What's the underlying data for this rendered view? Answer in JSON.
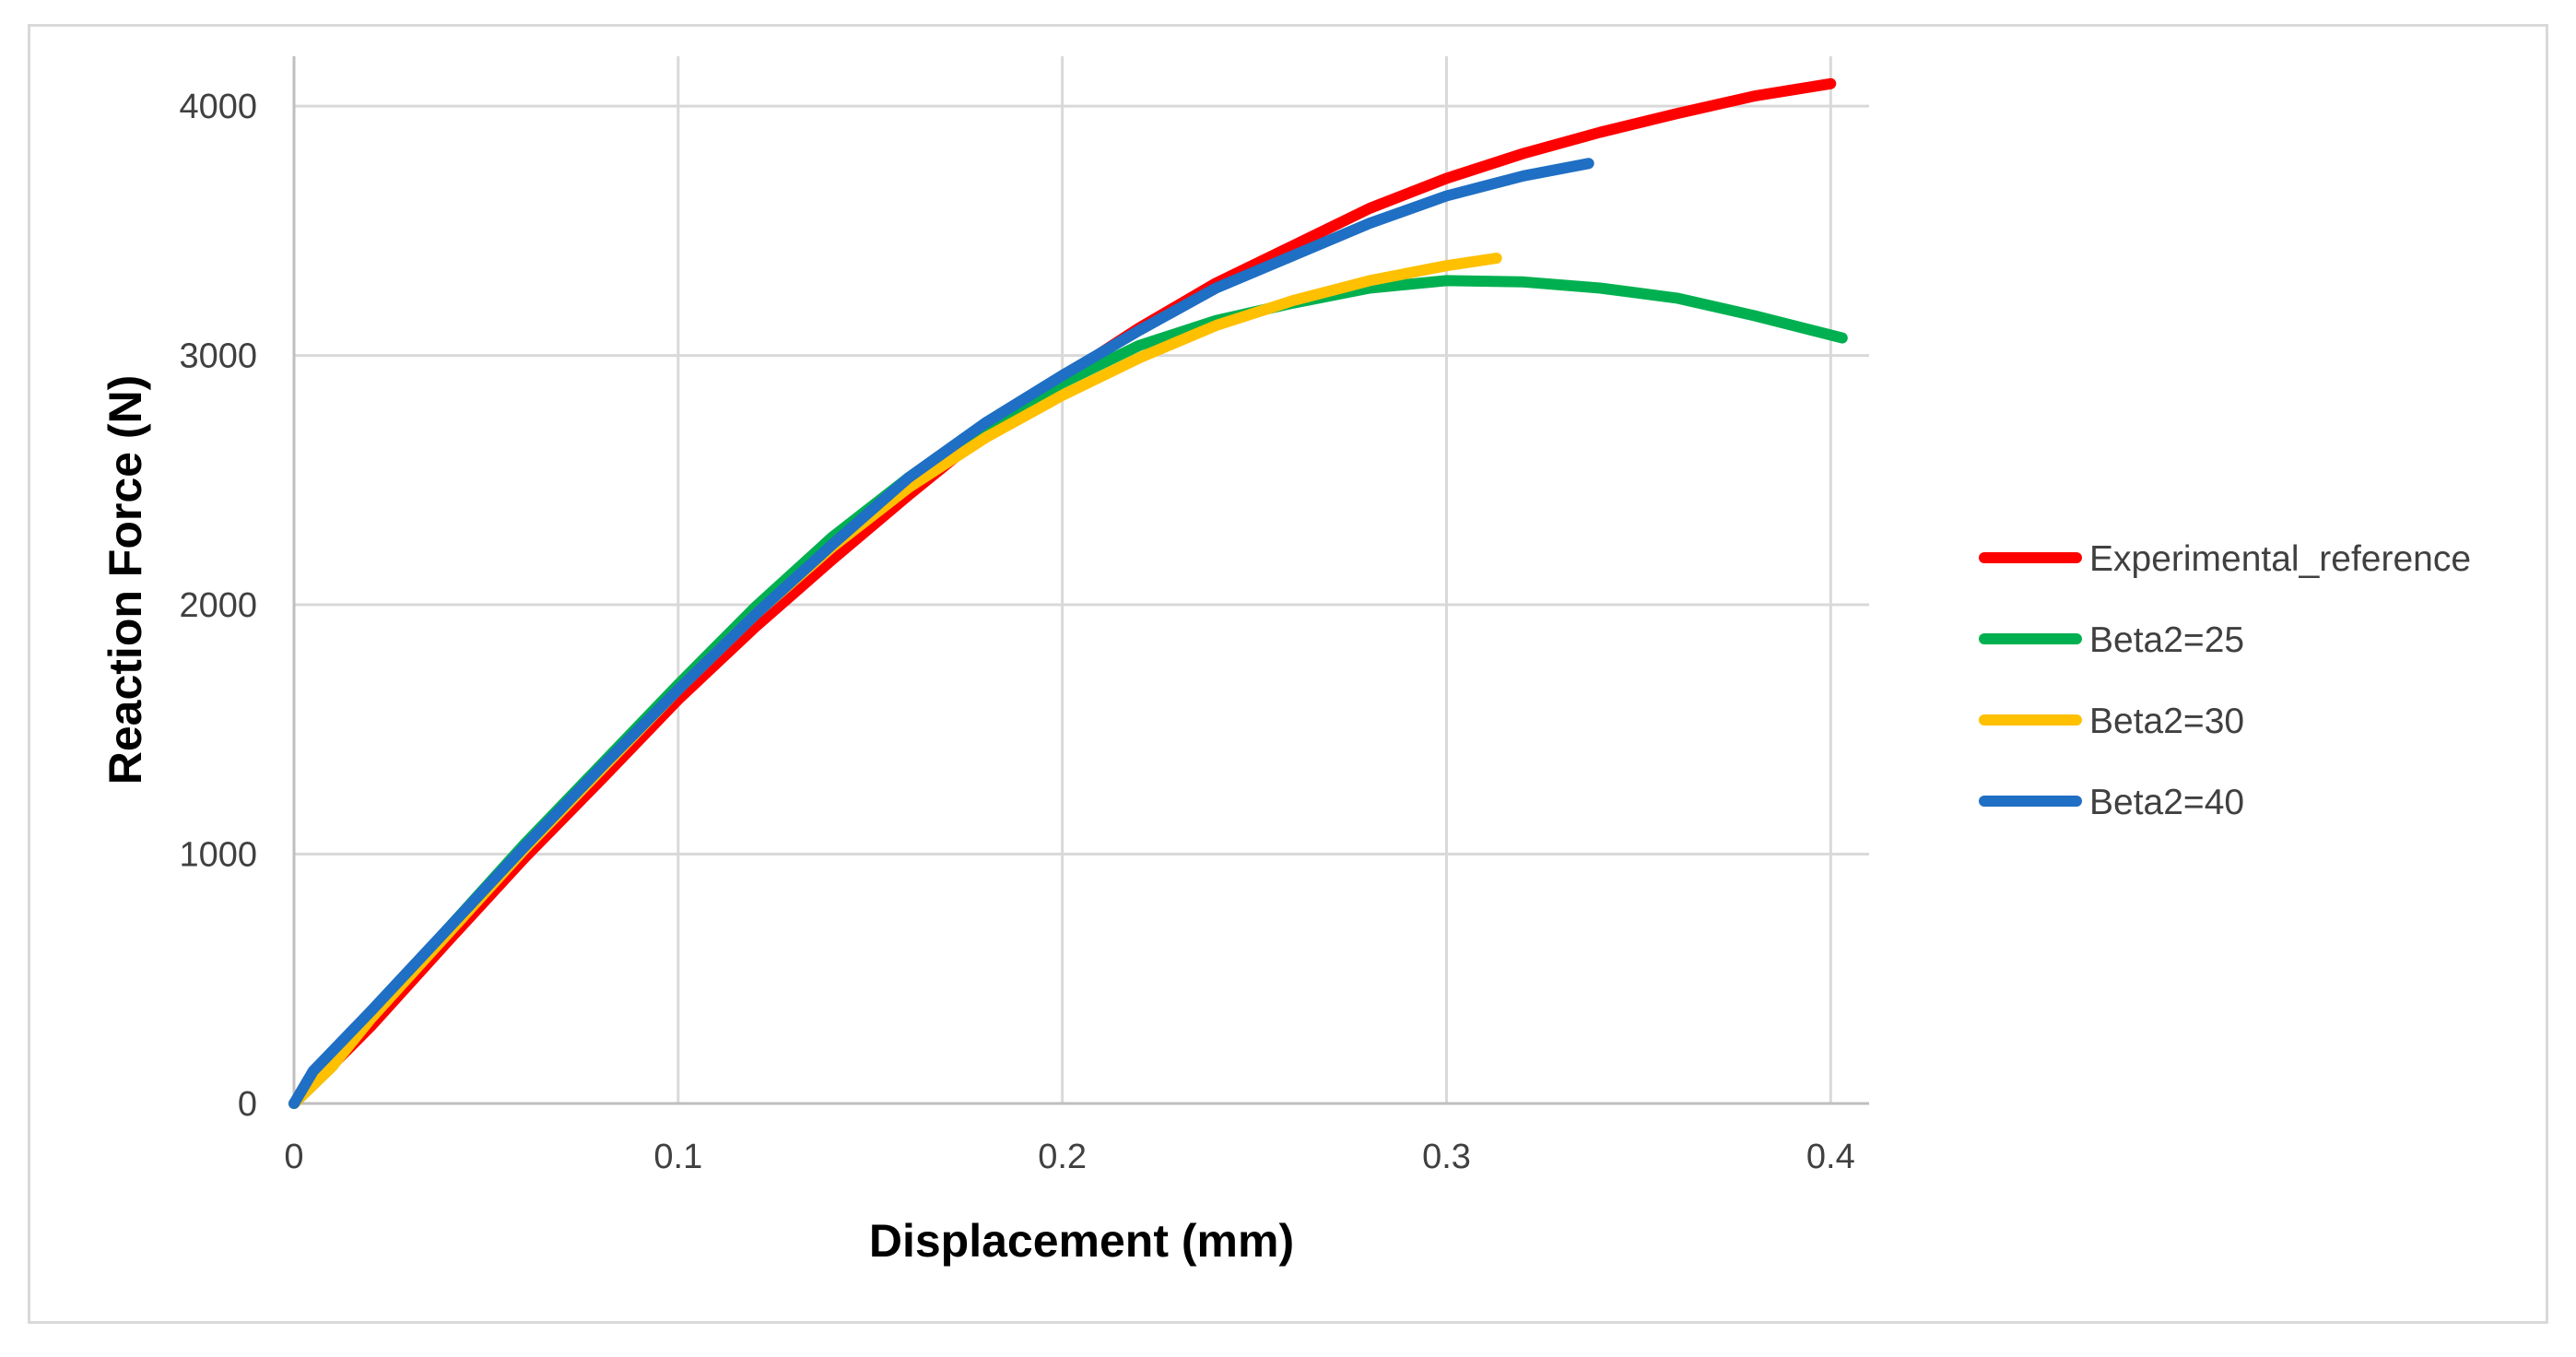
{
  "chart_data": {
    "type": "line",
    "title": "",
    "xlabel": "Displacement (mm)",
    "ylabel": "Reaction Force (N)",
    "xlim": [
      0,
      0.41
    ],
    "ylim": [
      0,
      4200
    ],
    "x_ticks": [
      0,
      0.1,
      0.2,
      0.3,
      0.4
    ],
    "x_tick_labels": [
      "0",
      "0.1",
      "0.2",
      "0.3",
      "0.4"
    ],
    "y_ticks": [
      0,
      1000,
      2000,
      3000,
      4000
    ],
    "y_tick_labels": [
      "0",
      "1000",
      "2000",
      "3000",
      "4000"
    ],
    "grid": true,
    "legend_position": "right",
    "series": [
      {
        "name": "Experimental_reference",
        "color": "#ff0000",
        "points": [
          [
            0,
            0
          ],
          [
            0.02,
            310
          ],
          [
            0.04,
            650
          ],
          [
            0.06,
            985
          ],
          [
            0.08,
            1300
          ],
          [
            0.1,
            1620
          ],
          [
            0.12,
            1910
          ],
          [
            0.14,
            2180
          ],
          [
            0.16,
            2440
          ],
          [
            0.18,
            2690
          ],
          [
            0.2,
            2910
          ],
          [
            0.22,
            3110
          ],
          [
            0.24,
            3290
          ],
          [
            0.26,
            3440
          ],
          [
            0.28,
            3590
          ],
          [
            0.3,
            3710
          ],
          [
            0.32,
            3810
          ],
          [
            0.34,
            3895
          ],
          [
            0.36,
            3970
          ],
          [
            0.38,
            4040
          ],
          [
            0.4,
            4090
          ]
        ]
      },
      {
        "name": "Beta2=25",
        "color": "#00b050",
        "points": [
          [
            0,
            0
          ],
          [
            0.01,
            150
          ],
          [
            0.02,
            350
          ],
          [
            0.04,
            700
          ],
          [
            0.06,
            1040
          ],
          [
            0.08,
            1360
          ],
          [
            0.1,
            1680
          ],
          [
            0.12,
            1990
          ],
          [
            0.14,
            2270
          ],
          [
            0.16,
            2510
          ],
          [
            0.18,
            2720
          ],
          [
            0.2,
            2890
          ],
          [
            0.22,
            3040
          ],
          [
            0.24,
            3140
          ],
          [
            0.26,
            3210
          ],
          [
            0.28,
            3270
          ],
          [
            0.3,
            3300
          ],
          [
            0.32,
            3295
          ],
          [
            0.34,
            3270
          ],
          [
            0.36,
            3230
          ],
          [
            0.38,
            3160
          ],
          [
            0.403,
            3070
          ]
        ]
      },
      {
        "name": "Beta2=30",
        "color": "#ffc000",
        "points": [
          [
            0,
            0
          ],
          [
            0.01,
            150
          ],
          [
            0.02,
            340
          ],
          [
            0.04,
            680
          ],
          [
            0.06,
            1020
          ],
          [
            0.08,
            1340
          ],
          [
            0.1,
            1660
          ],
          [
            0.12,
            1960
          ],
          [
            0.14,
            2230
          ],
          [
            0.16,
            2470
          ],
          [
            0.18,
            2670
          ],
          [
            0.2,
            2840
          ],
          [
            0.22,
            2990
          ],
          [
            0.24,
            3120
          ],
          [
            0.26,
            3220
          ],
          [
            0.28,
            3300
          ],
          [
            0.3,
            3360
          ],
          [
            0.313,
            3390
          ]
        ]
      },
      {
        "name": "Beta2=40",
        "color": "#1f6fc4",
        "points": [
          [
            0,
            0
          ],
          [
            0.005,
            130
          ],
          [
            0.01,
            210
          ],
          [
            0.02,
            370
          ],
          [
            0.04,
            700
          ],
          [
            0.06,
            1030
          ],
          [
            0.08,
            1350
          ],
          [
            0.1,
            1660
          ],
          [
            0.12,
            1960
          ],
          [
            0.14,
            2240
          ],
          [
            0.16,
            2510
          ],
          [
            0.18,
            2730
          ],
          [
            0.2,
            2920
          ],
          [
            0.22,
            3100
          ],
          [
            0.24,
            3270
          ],
          [
            0.26,
            3400
          ],
          [
            0.28,
            3530
          ],
          [
            0.3,
            3640
          ],
          [
            0.32,
            3720
          ],
          [
            0.337,
            3770
          ]
        ]
      }
    ]
  }
}
